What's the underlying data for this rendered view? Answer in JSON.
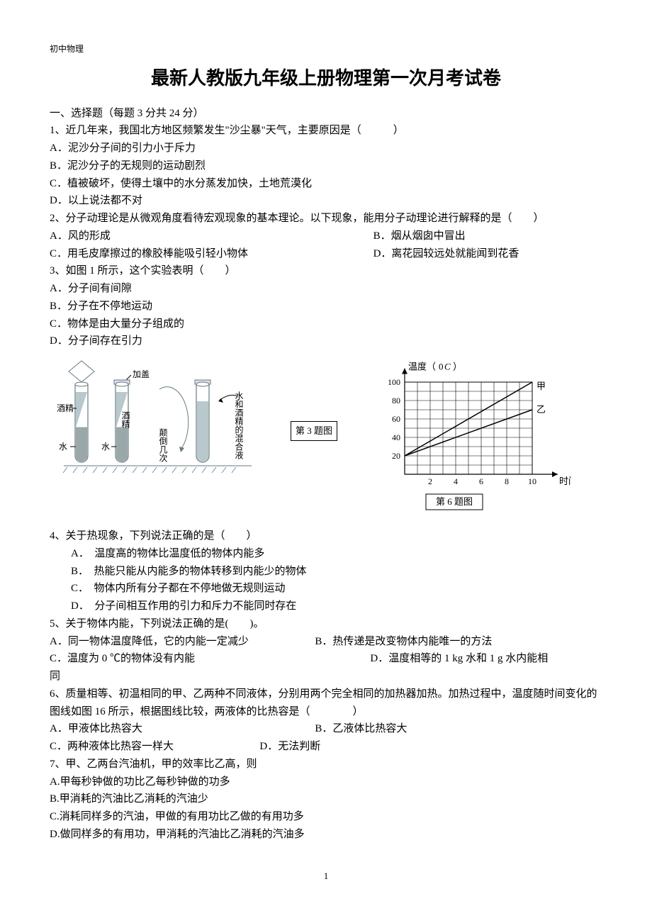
{
  "header": "初中物理",
  "title": "最新人教版九年级上册物理第一次月考试卷",
  "section1_heading": "一、选择题（每题 3 分共 24 分）",
  "q1": {
    "stem_a": "1、近几年来，我国北方地区频繁发生\"沙尘暴\"天气，主要原因是（",
    "stem_b": "）",
    "A": "A．泥沙分子间的引力小于斥力",
    "B": "B．泥沙分子的无规则的运动剧烈",
    "C": "C．植被破坏，使得土壤中的水分蒸发加快，土地荒漠化",
    "D": "D．以上说法都不对"
  },
  "q2": {
    "stem_a": "2、分子动理论是从微观角度看待宏观现象的基本理论。以下现象，能用分子动理论进行解释的是（",
    "stem_b": "）",
    "A": "A．风的形成",
    "B": "B．烟从烟囱中冒出",
    "C": "C．用毛皮摩擦过的橡胶棒能吸引轻小物体",
    "D": "D．离花园较远处就能闻到花香"
  },
  "q3": {
    "stem": "3、如图 1 所示，这个实验表明（　　）",
    "A": "A．分子间有间隙",
    "B": "B．分子在不停地运动",
    "C": "C．物体是由大量分子组成的",
    "D": "D．分子间存在引力"
  },
  "fig3": {
    "caption": "第 3 题图",
    "labels": {
      "alcohol": "酒精",
      "water": "水",
      "cap": "加盖",
      "flip": "颠倒几次",
      "mix": "水和酒精的混合液"
    },
    "fill_color": "#b8c8cc",
    "fill_color2": "#9aa8aa",
    "line_color": "#657a80"
  },
  "fig6": {
    "caption": "第 6 题图",
    "y_label": "温度（",
    "y_unit": "℃",
    "y_label_close": "）",
    "x_label": "时间（min）",
    "y_ticks": [
      20,
      40,
      60,
      80,
      100
    ],
    "x_ticks": [
      2,
      4,
      6,
      8,
      10
    ],
    "label_a": "甲",
    "label_b": "乙",
    "line_a": {
      "x1": 0,
      "y1": 20,
      "x2": 10,
      "y2": 100
    },
    "line_b": {
      "x1": 0,
      "y1": 20,
      "x2": 10,
      "y2": 70
    },
    "grid_color": "#000000",
    "axis_color": "#000000"
  },
  "q4": {
    "stem": "4、关于热现象，下列说法正确的是（　　）",
    "A": "A．　温度高的物体比温度低的物体内能多",
    "B": "B．　热能只能从内能多的物体转移到内能少的物体",
    "C": "C．　物体内所有分子都在不停地做无规则运动",
    "D": "D．　分子间相互作用的引力和斥力不能同时存在"
  },
  "q5": {
    "stem": "5、关于物体内能，下列说法正确的是(　　)。",
    "A": "A．同一物体温度降低，它的内能一定减少",
    "B": "B．热传递是改变物体内能唯一的方法",
    "C": "C．温度为 0 ℃的物体没有内能",
    "D_a": "D．温度相等的 1 kg 水和 1 g 水内能相",
    "D_b": "同"
  },
  "q6": {
    "stem_a": "6、质量相等、初温相同的甲、乙两种不同液体，分别用两个完全相同的加热器加热。加热过程中，温度随时间变化的图线如图 16 所示，根据图线比较，两液体的比热容是（",
    "stem_b": "）",
    "A": "A．甲液体比热容大",
    "B": "B．乙液体比热容大",
    "C": "C．两种液体比热容一样大",
    "D": "D．无法判断"
  },
  "q7": {
    "stem": "7、甲、乙两台汽油机，甲的效率比乙高，则",
    "A": "A.甲每秒钟做的功比乙每秒钟做的功多",
    "B": "B.甲消耗的汽油比乙消耗的汽油少",
    "C": "C.消耗同样多的汽油，甲做的有用功比乙做的有用功多",
    "D": "D.做同样多的有用功，甲消耗的汽油比乙消耗的汽油多"
  },
  "page_number": "1"
}
